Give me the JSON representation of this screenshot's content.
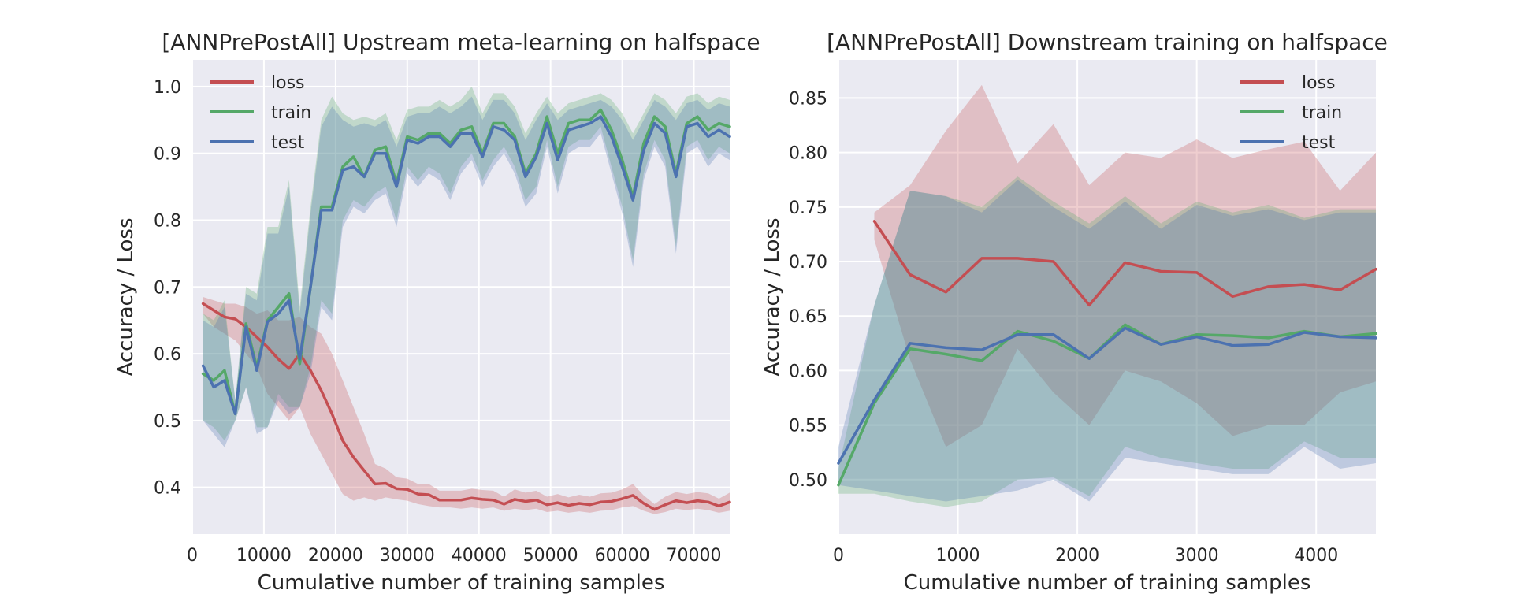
{
  "chart_data": [
    {
      "type": "line",
      "title": "[ANNPrePostAll] Upstream meta-learning on halfspace",
      "xlabel": "Cumulative number of training samples",
      "ylabel": "Accuracy / Loss",
      "xlim": [
        0,
        75000
      ],
      "ylim": [
        0.33,
        1.04
      ],
      "xticks": [
        0,
        10000,
        20000,
        30000,
        40000,
        50000,
        60000,
        70000
      ],
      "yticks": [
        0.4,
        0.5,
        0.6,
        0.7,
        0.8,
        0.9,
        1.0
      ],
      "xtick_labels": [
        "0",
        "10000",
        "20000",
        "30000",
        "40000",
        "50000",
        "60000",
        "70000"
      ],
      "ytick_labels": [
        "0.4",
        "0.5",
        "0.6",
        "0.7",
        "0.8",
        "0.9",
        "1.0"
      ],
      "grid": true,
      "legend": "top-left",
      "x": [
        1500,
        3000,
        4500,
        6000,
        7500,
        9000,
        10500,
        12000,
        13500,
        15000,
        16500,
        18000,
        19500,
        21000,
        22500,
        24000,
        25500,
        27000,
        28500,
        30000,
        31500,
        33000,
        34500,
        36000,
        37500,
        39000,
        40500,
        42000,
        43500,
        45000,
        46500,
        48000,
        49500,
        51000,
        52500,
        54000,
        55500,
        57000,
        58500,
        60000,
        61500,
        63000,
        64500,
        66000,
        67500,
        69000,
        70500,
        72000,
        73500,
        75000
      ],
      "series": [
        {
          "name": "loss",
          "color": "#c44e52",
          "values": [
            0.675,
            0.665,
            0.655,
            0.652,
            0.64,
            0.625,
            0.61,
            0.592,
            0.578,
            0.6,
            0.575,
            0.545,
            0.51,
            0.47,
            0.445,
            0.425,
            0.405,
            0.406,
            0.398,
            0.397,
            0.39,
            0.389,
            0.381,
            0.381,
            0.381,
            0.384,
            0.382,
            0.381,
            0.375,
            0.382,
            0.379,
            0.381,
            0.374,
            0.377,
            0.373,
            0.376,
            0.374,
            0.378,
            0.379,
            0.383,
            0.388,
            0.376,
            0.367,
            0.374,
            0.38,
            0.377,
            0.38,
            0.378,
            0.372,
            0.378
          ],
          "lower": [
            0.66,
            0.64,
            0.63,
            0.62,
            0.6,
            0.58,
            0.54,
            0.52,
            0.5,
            0.52,
            0.48,
            0.45,
            0.42,
            0.39,
            0.38,
            0.385,
            0.38,
            0.385,
            0.382,
            0.38,
            0.375,
            0.372,
            0.37,
            0.37,
            0.368,
            0.37,
            0.368,
            0.37,
            0.365,
            0.368,
            0.366,
            0.368,
            0.363,
            0.365,
            0.362,
            0.364,
            0.362,
            0.365,
            0.366,
            0.37,
            0.372,
            0.365,
            0.36,
            0.363,
            0.368,
            0.366,
            0.368,
            0.366,
            0.362,
            0.365
          ],
          "upper": [
            0.685,
            0.68,
            0.675,
            0.675,
            0.67,
            0.66,
            0.665,
            0.65,
            0.65,
            0.655,
            0.64,
            0.63,
            0.6,
            0.56,
            0.52,
            0.48,
            0.435,
            0.428,
            0.415,
            0.413,
            0.405,
            0.405,
            0.395,
            0.395,
            0.395,
            0.398,
            0.396,
            0.395,
            0.386,
            0.397,
            0.392,
            0.395,
            0.386,
            0.39,
            0.385,
            0.389,
            0.386,
            0.391,
            0.392,
            0.397,
            0.405,
            0.388,
            0.375,
            0.386,
            0.393,
            0.39,
            0.393,
            0.391,
            0.383,
            0.392
          ]
        },
        {
          "name": "train",
          "color": "#55a868",
          "values": [
            0.57,
            0.56,
            0.575,
            0.51,
            0.645,
            0.58,
            0.65,
            0.67,
            0.69,
            0.585,
            0.7,
            0.82,
            0.82,
            0.88,
            0.895,
            0.865,
            0.905,
            0.91,
            0.855,
            0.925,
            0.92,
            0.93,
            0.93,
            0.915,
            0.935,
            0.94,
            0.9,
            0.945,
            0.945,
            0.925,
            0.87,
            0.9,
            0.955,
            0.9,
            0.945,
            0.95,
            0.95,
            0.965,
            0.935,
            0.89,
            0.835,
            0.915,
            0.955,
            0.94,
            0.87,
            0.945,
            0.955,
            0.935,
            0.945,
            0.94
          ],
          "lower": [
            0.5,
            0.49,
            0.47,
            0.5,
            0.55,
            0.49,
            0.49,
            0.54,
            0.52,
            0.52,
            0.58,
            0.68,
            0.66,
            0.8,
            0.83,
            0.82,
            0.84,
            0.85,
            0.8,
            0.88,
            0.86,
            0.88,
            0.87,
            0.84,
            0.88,
            0.9,
            0.86,
            0.89,
            0.91,
            0.88,
            0.83,
            0.85,
            0.92,
            0.85,
            0.91,
            0.92,
            0.92,
            0.94,
            0.88,
            0.82,
            0.74,
            0.87,
            0.92,
            0.89,
            0.76,
            0.91,
            0.92,
            0.89,
            0.91,
            0.9
          ],
          "upper": [
            0.66,
            0.65,
            0.68,
            0.53,
            0.7,
            0.69,
            0.79,
            0.79,
            0.86,
            0.67,
            0.82,
            0.95,
            0.985,
            0.96,
            0.95,
            0.955,
            0.95,
            0.96,
            0.92,
            0.965,
            0.97,
            0.97,
            0.98,
            0.97,
            0.98,
            1.0,
            0.96,
            0.99,
            0.99,
            0.97,
            0.93,
            0.96,
            0.985,
            0.96,
            0.975,
            0.98,
            0.985,
            0.99,
            0.98,
            0.96,
            0.93,
            0.96,
            0.99,
            0.98,
            0.96,
            0.985,
            0.99,
            0.975,
            0.985,
            0.98
          ]
        },
        {
          "name": "test",
          "color": "#4c72b0",
          "values": [
            0.582,
            0.55,
            0.56,
            0.51,
            0.64,
            0.575,
            0.648,
            0.66,
            0.68,
            0.592,
            0.7,
            0.815,
            0.815,
            0.875,
            0.88,
            0.865,
            0.9,
            0.9,
            0.85,
            0.92,
            0.915,
            0.925,
            0.925,
            0.91,
            0.93,
            0.93,
            0.895,
            0.94,
            0.935,
            0.92,
            0.865,
            0.895,
            0.945,
            0.89,
            0.935,
            0.94,
            0.945,
            0.955,
            0.925,
            0.88,
            0.83,
            0.905,
            0.945,
            0.93,
            0.865,
            0.94,
            0.945,
            0.925,
            0.935,
            0.925
          ],
          "lower": [
            0.5,
            0.48,
            0.46,
            0.5,
            0.55,
            0.48,
            0.49,
            0.53,
            0.51,
            0.52,
            0.57,
            0.67,
            0.65,
            0.79,
            0.82,
            0.81,
            0.83,
            0.84,
            0.79,
            0.87,
            0.85,
            0.87,
            0.86,
            0.83,
            0.87,
            0.89,
            0.85,
            0.88,
            0.9,
            0.87,
            0.82,
            0.84,
            0.91,
            0.84,
            0.9,
            0.91,
            0.91,
            0.93,
            0.87,
            0.81,
            0.73,
            0.86,
            0.91,
            0.88,
            0.75,
            0.9,
            0.91,
            0.88,
            0.9,
            0.89
          ],
          "upper": [
            0.65,
            0.64,
            0.67,
            0.53,
            0.69,
            0.68,
            0.78,
            0.78,
            0.85,
            0.66,
            0.81,
            0.94,
            0.97,
            0.95,
            0.94,
            0.945,
            0.94,
            0.95,
            0.91,
            0.955,
            0.96,
            0.96,
            0.97,
            0.96,
            0.97,
            0.985,
            0.95,
            0.98,
            0.98,
            0.96,
            0.92,
            0.95,
            0.975,
            0.95,
            0.965,
            0.97,
            0.975,
            0.98,
            0.97,
            0.95,
            0.92,
            0.95,
            0.98,
            0.97,
            0.95,
            0.975,
            0.98,
            0.965,
            0.975,
            0.97
          ]
        }
      ]
    },
    {
      "type": "line",
      "title": "[ANNPrePostAll] Downstream training on halfspace",
      "xlabel": "Cumulative number of training samples",
      "ylabel": "Accuracy / Loss",
      "xlim": [
        0,
        4500
      ],
      "ylim": [
        0.45,
        0.885
      ],
      "xticks": [
        0,
        1000,
        2000,
        3000,
        4000
      ],
      "yticks": [
        0.5,
        0.55,
        0.6,
        0.65,
        0.7,
        0.75,
        0.8,
        0.85
      ],
      "xtick_labels": [
        "0",
        "1000",
        "2000",
        "3000",
        "4000"
      ],
      "ytick_labels": [
        "0.50",
        "0.55",
        "0.60",
        "0.65",
        "0.70",
        "0.75",
        "0.80",
        "0.85"
      ],
      "grid": true,
      "legend": "top-right",
      "x": [
        0,
        300,
        600,
        900,
        1200,
        1500,
        1800,
        2100,
        2400,
        2700,
        3000,
        3300,
        3600,
        3900,
        4200,
        4500
      ],
      "series": [
        {
          "name": "loss",
          "color": "#c44e52",
          "values": [
            null,
            0.737,
            0.688,
            0.672,
            0.703,
            0.703,
            0.7,
            0.66,
            0.699,
            0.691,
            0.69,
            0.668,
            0.677,
            0.679,
            0.674,
            0.693
          ],
          "lower": [
            null,
            0.72,
            0.61,
            0.53,
            0.55,
            0.62,
            0.58,
            0.55,
            0.6,
            0.59,
            0.57,
            0.54,
            0.55,
            0.55,
            0.58,
            0.59
          ],
          "upper": [
            null,
            0.745,
            0.77,
            0.82,
            0.862,
            0.79,
            0.826,
            0.77,
            0.8,
            0.795,
            0.812,
            0.795,
            0.803,
            0.81,
            0.765,
            0.8
          ]
        },
        {
          "name": "train",
          "color": "#55a868",
          "values": [
            0.495,
            0.57,
            0.62,
            0.615,
            0.609,
            0.636,
            0.627,
            0.611,
            0.642,
            0.624,
            0.633,
            0.632,
            0.63,
            0.636,
            0.631,
            0.634
          ],
          "lower": [
            0.487,
            0.487,
            0.48,
            0.475,
            0.48,
            0.5,
            0.502,
            0.485,
            0.53,
            0.52,
            0.515,
            0.51,
            0.51,
            0.535,
            0.52,
            0.52
          ],
          "upper": [
            0.51,
            0.66,
            0.765,
            0.76,
            0.75,
            0.778,
            0.755,
            0.735,
            0.76,
            0.735,
            0.755,
            0.745,
            0.752,
            0.74,
            0.748,
            0.748
          ]
        },
        {
          "name": "test",
          "color": "#4c72b0",
          "values": [
            0.515,
            0.573,
            0.625,
            0.621,
            0.619,
            0.633,
            0.633,
            0.611,
            0.639,
            0.624,
            0.631,
            0.623,
            0.624,
            0.635,
            0.631,
            0.63
          ],
          "lower": [
            0.495,
            0.49,
            0.485,
            0.48,
            0.485,
            0.49,
            0.5,
            0.48,
            0.52,
            0.515,
            0.51,
            0.505,
            0.505,
            0.53,
            0.51,
            0.515
          ],
          "upper": [
            0.53,
            0.66,
            0.765,
            0.76,
            0.745,
            0.775,
            0.75,
            0.73,
            0.755,
            0.73,
            0.752,
            0.742,
            0.748,
            0.738,
            0.745,
            0.745
          ]
        }
      ]
    }
  ]
}
